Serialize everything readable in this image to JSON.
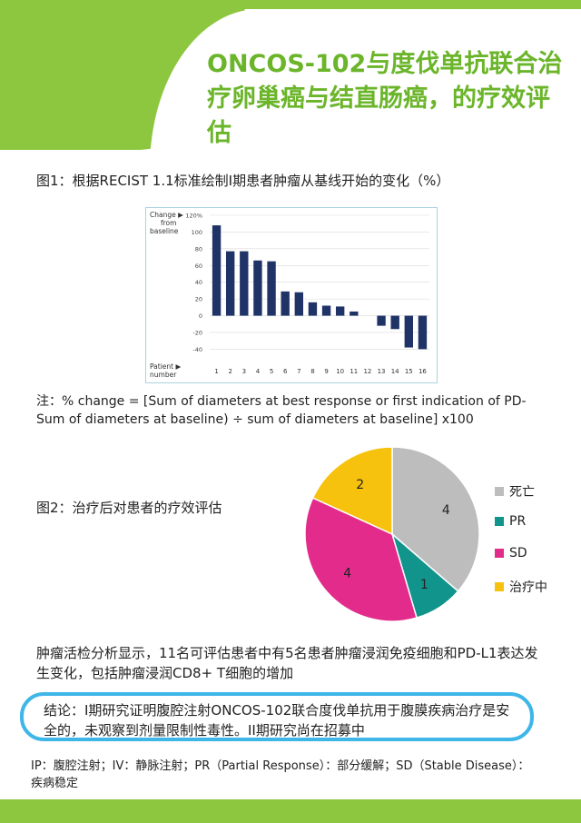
{
  "title": "ONCOS-102与度伐单抗联合治疗卵巢癌与结直肠癌，的疗效评估",
  "figure1": {
    "caption": "图1：根据RECIST 1.1标准绘制I期患者肿瘤从基线开始的变化（%）",
    "y_axis_label_lines": [
      "Change ▶",
      "from",
      "baseline"
    ],
    "x_axis_label_lines": [
      "Patient ▶",
      "number"
    ],
    "bar_color": "#1f3366"
  },
  "chart_data": {
    "type": "bar",
    "categories": [
      "1",
      "2",
      "3",
      "4",
      "5",
      "6",
      "7",
      "8",
      "9",
      "10",
      "11",
      "12",
      "13",
      "14",
      "15",
      "16"
    ],
    "values": [
      108,
      77,
      77,
      66,
      65,
      29,
      28,
      16,
      12,
      11,
      5,
      0,
      -12,
      -16,
      -38,
      -40
    ],
    "ylim": [
      -45,
      120
    ],
    "yticks": [
      -40,
      -20,
      0,
      20,
      40,
      60,
      80,
      100,
      120
    ],
    "ytick_labels": [
      "-40",
      "-20",
      "0",
      "20",
      "40",
      "60",
      "80",
      "100",
      "120%"
    ],
    "xlabel": "Patient number",
    "ylabel": "Change from baseline"
  },
  "note": "注：% change = [Sum of diameters at best response or first indication of PD-Sum of diameters at baseline) ÷ sum of diameters at baseline] x100",
  "figure2": {
    "caption": "图2：治疗后对患者的疗效评估",
    "slices": [
      {
        "label": "死亡",
        "value": 4,
        "color": "#bdbdbd"
      },
      {
        "label": "PR",
        "value": 1,
        "color": "#11948b"
      },
      {
        "label": "SD",
        "value": 4,
        "color": "#e22b8a"
      },
      {
        "label": "治疗中",
        "value": 2,
        "color": "#f7c20e"
      }
    ]
  },
  "finding": "肿瘤活检分析显示，11名可评估患者中有5名患者肿瘤浸润免疫细胞和PD-L1表达发生变化，包括肿瘤浸润CD8+ T细胞的增加",
  "conclusion": "结论：I期研究证明腹腔注射ONCOS-102联合度伐单抗用于腹膜疾病治疗是安全的，未观察到剂量限制性毒性。II期研究尚在招募中",
  "abbreviations": "IP：腹腔注射；IV：静脉注射；PR（Partial Response）：部分缓解；SD（Stable Disease）：疾病稳定",
  "colors": {
    "accent_green": "#8dc63f",
    "title_green": "#6bb52a",
    "frame_blue": "#3fb6e8"
  }
}
